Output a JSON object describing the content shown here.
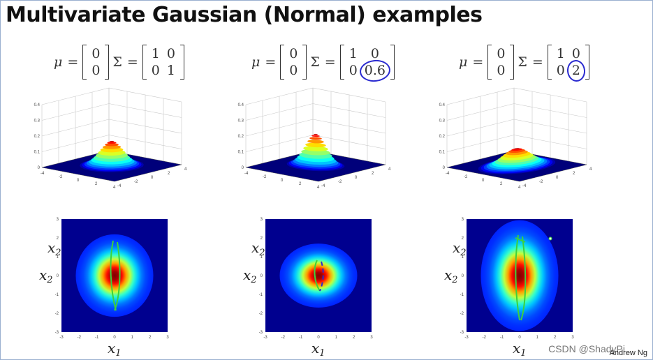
{
  "title": "Multivariate Gaussian (Normal) examples",
  "panels": [
    {
      "mu_label": "μ",
      "sigma_label": "Σ",
      "equals": "=",
      "mu": [
        "0",
        "0"
      ],
      "sigma": [
        [
          "1",
          "0"
        ],
        [
          "0",
          "1"
        ]
      ],
      "circled": "",
      "sigma_x1": 1,
      "sigma_x2": 1,
      "x1_label": "x",
      "x2_label": "x",
      "sub1": "1",
      "sub2": "2"
    },
    {
      "mu_label": "μ",
      "sigma_label": "Σ",
      "equals": "=",
      "mu": [
        "0",
        "0"
      ],
      "sigma": [
        [
          "1",
          "0"
        ],
        [
          "0",
          "0.6"
        ]
      ],
      "circled": "0.6",
      "sigma_x1": 1,
      "sigma_x2": 0.6,
      "x1_label": "x",
      "x2_label": "x",
      "sub1": "1",
      "sub2": "2"
    },
    {
      "mu_label": "μ",
      "sigma_label": "Σ",
      "equals": "=",
      "mu": [
        "0",
        "0"
      ],
      "sigma": [
        [
          "1",
          "0"
        ],
        [
          "0",
          "2"
        ]
      ],
      "circled": "2",
      "sigma_x1": 1,
      "sigma_x2": 2,
      "x1_label": "x",
      "x2_label": "x",
      "sub1": "1",
      "sub2": "2"
    }
  ],
  "z_ticks": [
    "0",
    "0.1",
    "0.2",
    "0.3",
    "0.4"
  ],
  "axis_ticks": [
    "-4",
    "-2",
    "0",
    "2",
    "4"
  ],
  "heat_ticks": [
    "-3",
    "-2",
    "-1",
    "0",
    "1",
    "2",
    "3"
  ],
  "watermark": "CSDN @ShadyPi",
  "author": "Andrew Ng",
  "colors": {
    "annotation_blue": "#2a2ad0",
    "annotation_green": "#3cd23c"
  }
}
